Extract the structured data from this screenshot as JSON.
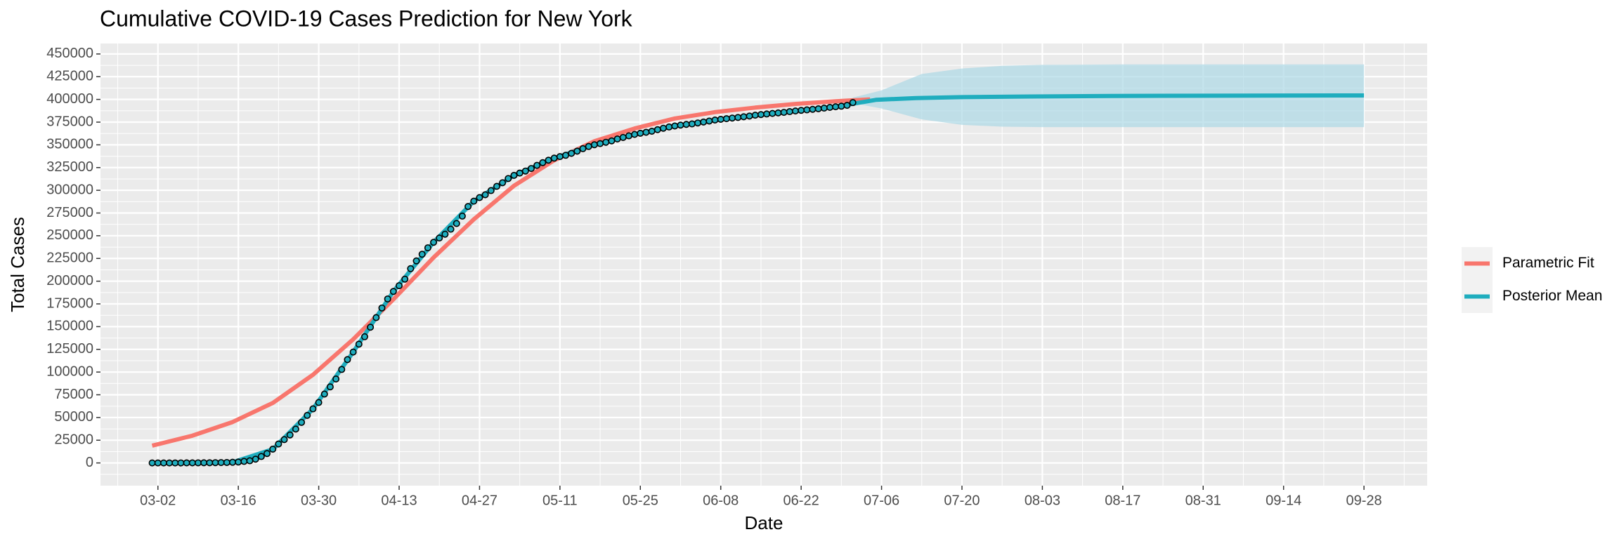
{
  "chart_data": {
    "type": "line",
    "title": "Cumulative COVID-19 Cases Prediction for New York",
    "x_label": "Date",
    "y_label": "Total Cases",
    "xlim": [
      "02-20",
      "10-09"
    ],
    "ylim": [
      -25000,
      461500
    ],
    "xticks": [
      "03-02",
      "03-16",
      "03-30",
      "04-13",
      "04-27",
      "05-11",
      "05-25",
      "06-08",
      "06-22",
      "07-06",
      "07-20",
      "08-03",
      "08-17",
      "08-31",
      "09-14",
      "09-28"
    ],
    "yticks": [
      0,
      25000,
      50000,
      75000,
      100000,
      125000,
      150000,
      175000,
      200000,
      225000,
      250000,
      275000,
      300000,
      325000,
      350000,
      375000,
      400000,
      425000,
      450000
    ],
    "grid": true,
    "legend": "right",
    "band": {
      "color": "#add8e6",
      "x": [
        "07-01",
        "07-06",
        "07-13",
        "07-20",
        "07-27",
        "08-03",
        "08-17",
        "09-01",
        "09-14",
        "09-28"
      ],
      "lower": [
        396000,
        390000,
        378000,
        372000,
        370000,
        369500,
        369500,
        369500,
        369500,
        369500
      ],
      "upper": [
        402000,
        410000,
        428000,
        434000,
        437000,
        438000,
        438500,
        438500,
        438500,
        438500
      ]
    },
    "series": [
      {
        "name": "Parametric Fit",
        "color": "#F8766D",
        "x": [
          "03-01",
          "03-08",
          "03-15",
          "03-22",
          "03-29",
          "04-05",
          "04-12",
          "04-19",
          "04-26",
          "05-03",
          "05-10",
          "05-17",
          "05-24",
          "05-31",
          "06-07",
          "06-14",
          "06-21",
          "06-28",
          "07-04"
        ],
        "values": [
          19000,
          30000,
          45000,
          66000,
          97000,
          136000,
          180000,
          226000,
          268000,
          305000,
          333000,
          354000,
          368000,
          379000,
          386000,
          391000,
          395000,
          398000,
          400000
        ]
      },
      {
        "name": "Posterior Mean",
        "color": "#1FADBE",
        "x": [
          "03-01",
          "03-15",
          "03-22",
          "03-29",
          "04-05",
          "04-12",
          "04-19",
          "04-26",
          "05-03",
          "05-10",
          "05-17",
          "05-24",
          "05-31",
          "06-07",
          "06-14",
          "06-21",
          "06-28",
          "07-05",
          "07-12",
          "07-20",
          "08-01",
          "08-15",
          "09-01",
          "09-15",
          "09-28"
        ],
        "values": [
          0,
          700,
          15000,
          59500,
          122000,
          188700,
          242800,
          288000,
          316400,
          335400,
          350100,
          361500,
          370800,
          377300,
          382600,
          387300,
          392000,
          399500,
          401500,
          402500,
          403200,
          403800,
          404100,
          404300,
          404400
        ]
      }
    ],
    "points": {
      "color": "#1FADBE",
      "x": [
        "03-01",
        "03-02",
        "03-03",
        "03-04",
        "03-05",
        "03-06",
        "03-07",
        "03-08",
        "03-09",
        "03-10",
        "03-11",
        "03-12",
        "03-13",
        "03-14",
        "03-15",
        "03-16",
        "03-17",
        "03-18",
        "03-19",
        "03-20",
        "03-21",
        "03-22",
        "03-23",
        "03-24",
        "03-25",
        "03-26",
        "03-27",
        "03-28",
        "03-29",
        "03-30",
        "03-31",
        "04-01",
        "04-02",
        "04-03",
        "04-04",
        "04-05",
        "04-06",
        "04-07",
        "04-08",
        "04-09",
        "04-10",
        "04-11",
        "04-12",
        "04-13",
        "04-14",
        "04-15",
        "04-16",
        "04-17",
        "04-18",
        "04-19",
        "04-20",
        "04-21",
        "04-22",
        "04-23",
        "04-24",
        "04-25",
        "04-26",
        "04-27",
        "04-28",
        "04-29",
        "04-30",
        "05-01",
        "05-02",
        "05-03",
        "05-04",
        "05-05",
        "05-06",
        "05-07",
        "05-08",
        "05-09",
        "05-10",
        "05-11",
        "05-12",
        "05-13",
        "05-14",
        "05-15",
        "05-16",
        "05-17",
        "05-18",
        "05-19",
        "05-20",
        "05-21",
        "05-22",
        "05-23",
        "05-24",
        "05-25",
        "05-26",
        "05-27",
        "05-28",
        "05-29",
        "05-30",
        "05-31",
        "06-01",
        "06-02",
        "06-03",
        "06-04",
        "06-05",
        "06-06",
        "06-07",
        "06-08",
        "06-09",
        "06-10",
        "06-11",
        "06-12",
        "06-13",
        "06-14",
        "06-15",
        "06-16",
        "06-17",
        "06-18",
        "06-19",
        "06-20",
        "06-21",
        "06-22",
        "06-23",
        "06-24",
        "06-25",
        "06-26",
        "06-27",
        "06-28",
        "06-29",
        "06-30",
        "07-01"
      ],
      "values": [
        0,
        1,
        2,
        11,
        22,
        44,
        89,
        106,
        142,
        173,
        217,
        326,
        421,
        524,
        729,
        950,
        1700,
        2382,
        4152,
        7102,
        10356,
        15168,
        20875,
        25665,
        30811,
        37258,
        44635,
        52318,
        59513,
        66497,
        75795,
        83712,
        92381,
        102863,
        113704,
        122031,
        130689,
        138863,
        149316,
        159937,
        170512,
        180458,
        188694,
        195031,
        202208,
        213779,
        222284,
        229642,
        236732,
        242786,
        247512,
        251690,
        257216,
        263460,
        271590,
        282143,
        288045,
        291996,
        295106,
        299691,
        304372,
        308314,
        312977,
        316415,
        318953,
        321192,
        323978,
        327469,
        330407,
        333122,
        335395,
        337055,
        338485,
        340661,
        343051,
        345813,
        348232,
        350121,
        351371,
        352845,
        354370,
        356458,
        358154,
        359926,
        361515,
        362764,
        363836,
        364965,
        366733,
        368284,
        369660,
        370770,
        371711,
        372494,
        373040,
        374085,
        375133,
        376208,
        377316,
        378097,
        378799,
        379482,
        380156,
        380892,
        381714,
        382630,
        383324,
        383944,
        384575,
        385142,
        385760,
        386556,
        387272,
        387936,
        388488,
        389085,
        389666,
        390415,
        391220,
        391923,
        392539,
        393454,
        396500
      ]
    }
  }
}
